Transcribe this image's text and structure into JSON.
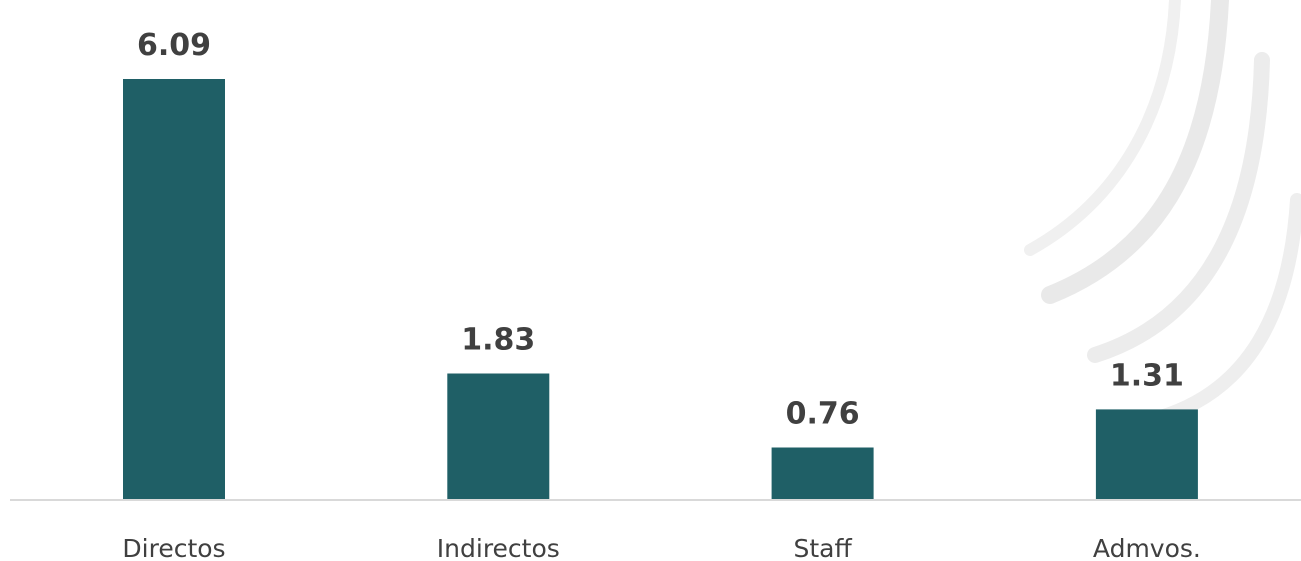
{
  "chart_data": {
    "type": "bar",
    "categories": [
      "Directos",
      "Indirectos",
      "Staff",
      "Admvos."
    ],
    "values": [
      6.09,
      1.83,
      0.76,
      1.31
    ],
    "value_labels": [
      "6.09",
      "1.83",
      "0.76",
      "1.31"
    ],
    "title": "",
    "xlabel": "",
    "ylabel": "",
    "ylim": [
      0,
      6.09
    ],
    "grid": false,
    "legend": "none",
    "colors": {
      "bar": "#1f5f66",
      "axis": "#d9d9d9",
      "label": "#404040",
      "watermark": "#e8e8e8"
    }
  }
}
